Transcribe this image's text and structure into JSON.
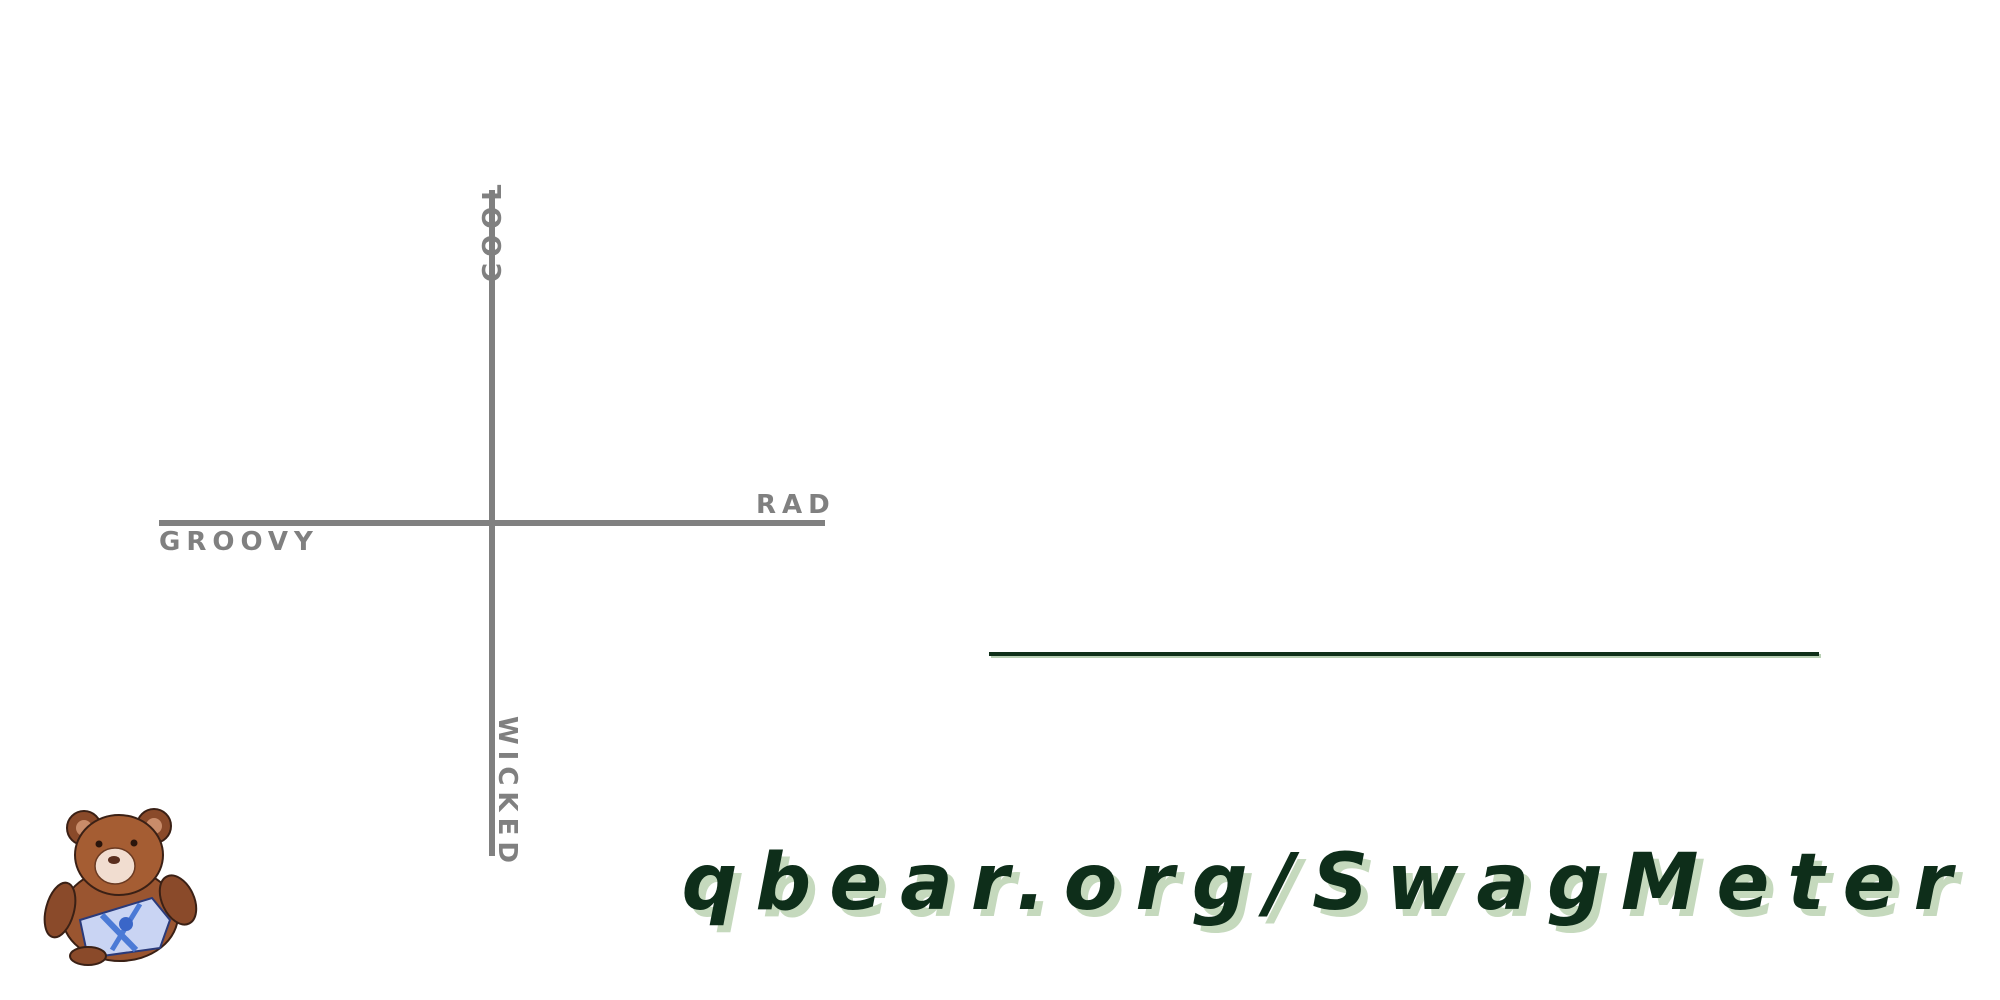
{
  "axes": {
    "top_label": "COOL",
    "bottom_label": "WICKED",
    "left_label": "GROOVY",
    "right_label": "RAD"
  },
  "footer": {
    "url": "qbear.org/SwagMeter"
  },
  "colors": {
    "axis": "#808080",
    "accent_dark_green": "#0e2e1a",
    "shadow_light_green": "#c5d9bd"
  },
  "icons": {
    "logo": "teddy-bear-icon"
  }
}
